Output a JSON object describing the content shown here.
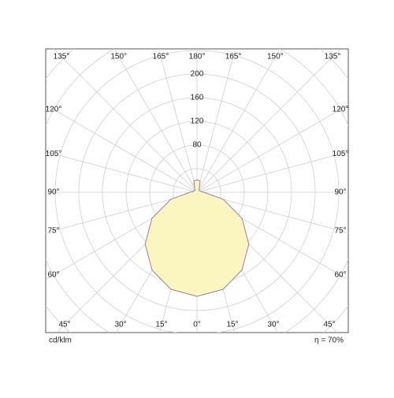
{
  "chart_data": {
    "type": "polar-photometric",
    "unit_label": "cd/klm",
    "efficiency_label": "η = 70%",
    "angles": [
      0,
      15,
      30,
      45,
      60,
      75,
      90,
      105,
      120,
      135,
      150,
      165,
      180
    ],
    "series": [
      {
        "color": "#fbf6c0",
        "edge_color": "#9a7fa0",
        "values": [
          176,
          170,
          152,
          124,
          88,
          46,
          12,
          6,
          5,
          5,
          8,
          20,
          21
        ]
      }
    ],
    "angle_labels": [
      {
        "value": 0,
        "label": "0°"
      },
      {
        "value": 15,
        "label": "15°"
      },
      {
        "value": 30,
        "label": "30°"
      },
      {
        "value": 45,
        "label": "45°"
      },
      {
        "value": 60,
        "label": "60°"
      },
      {
        "value": 75,
        "label": "75°"
      },
      {
        "value": 90,
        "label": "90°"
      },
      {
        "value": 105,
        "label": "105°"
      },
      {
        "value": 120,
        "label": "120°"
      },
      {
        "value": 135,
        "label": "135°"
      },
      {
        "value": 150,
        "label": "150°"
      },
      {
        "value": 165,
        "label": "165°"
      },
      {
        "value": 180,
        "label": "180°"
      }
    ],
    "rticks": [
      80,
      120,
      160,
      200
    ],
    "rgrid_step": 40,
    "rlim": [
      0,
      360
    ]
  }
}
